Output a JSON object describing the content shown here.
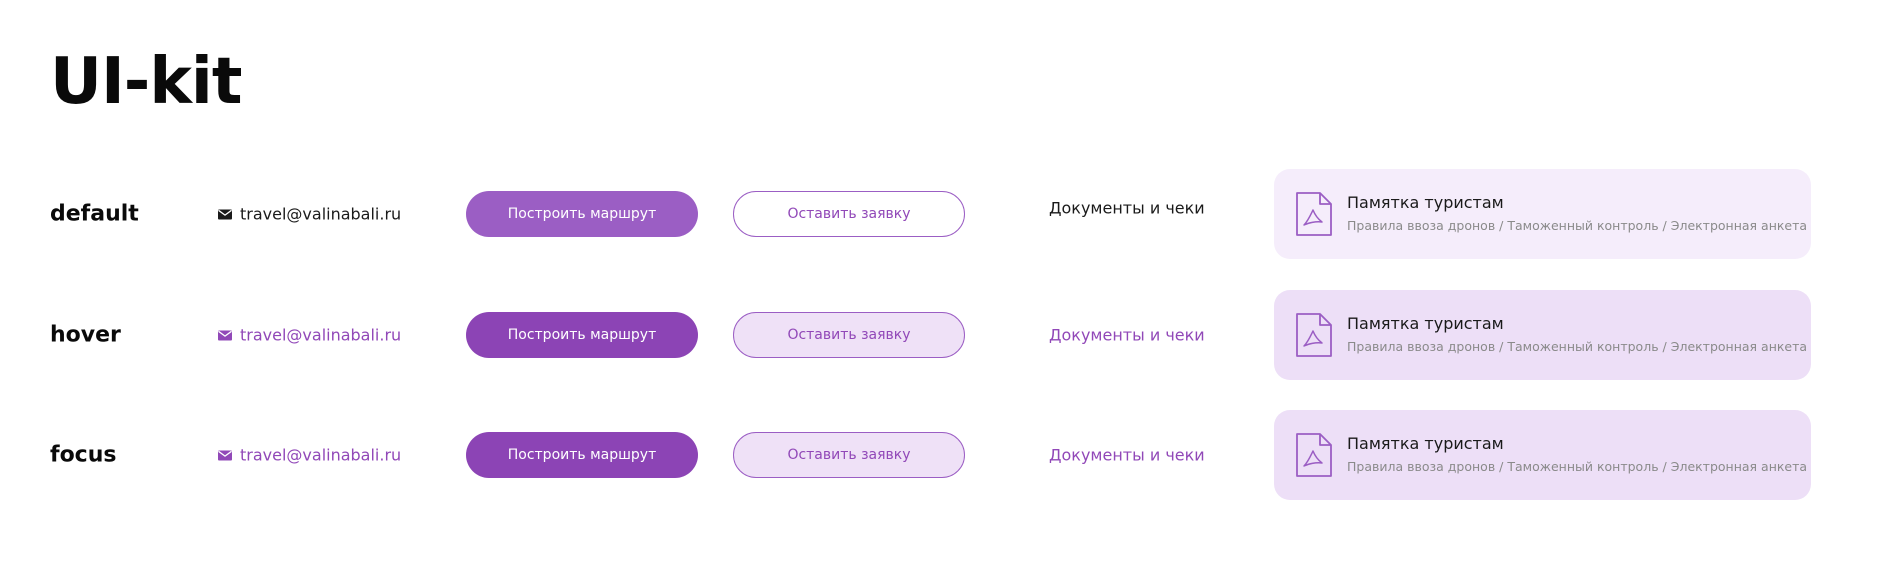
{
  "title": "UI-kit",
  "rows": [
    {
      "state": "default",
      "email": "travel@valinabali.ru",
      "primary_button": "Построить маршрут",
      "secondary_button": "Оставить заявку",
      "doc_link": "Документы и чеки",
      "card_title": "Памятка туристам",
      "card_subtitle": "Правила ввоза дронов / Таможенный контроль / Электронная анкета"
    },
    {
      "state": "hover",
      "email": "travel@valinabali.ru",
      "primary_button": "Построить маршрут",
      "secondary_button": "Оставить заявку",
      "doc_link": "Документы и чеки",
      "card_title": "Памятка туристам",
      "card_subtitle": "Правила ввоза дронов / Таможенный контроль / Электронная анкета"
    },
    {
      "state": "focus",
      "email": "travel@valinabali.ru",
      "primary_button": "Построить маршрут",
      "secondary_button": "Оставить заявку",
      "doc_link": "Документы и чеки",
      "card_title": "Памятка туристам",
      "card_subtitle": "Правила ввоза дронов / Таможенный контроль / Электронная анкета"
    }
  ],
  "icons": {
    "email": "envelope-icon",
    "card": "pdf-file-icon"
  },
  "colors": {
    "accent": "#9148b8",
    "primary_default": "#9b5ec4",
    "primary_active": "#8c44b5",
    "secondary_active_bg": "#efe1f7",
    "card_default_bg": "#f5edfb",
    "card_active_bg": "#eddff7"
  }
}
